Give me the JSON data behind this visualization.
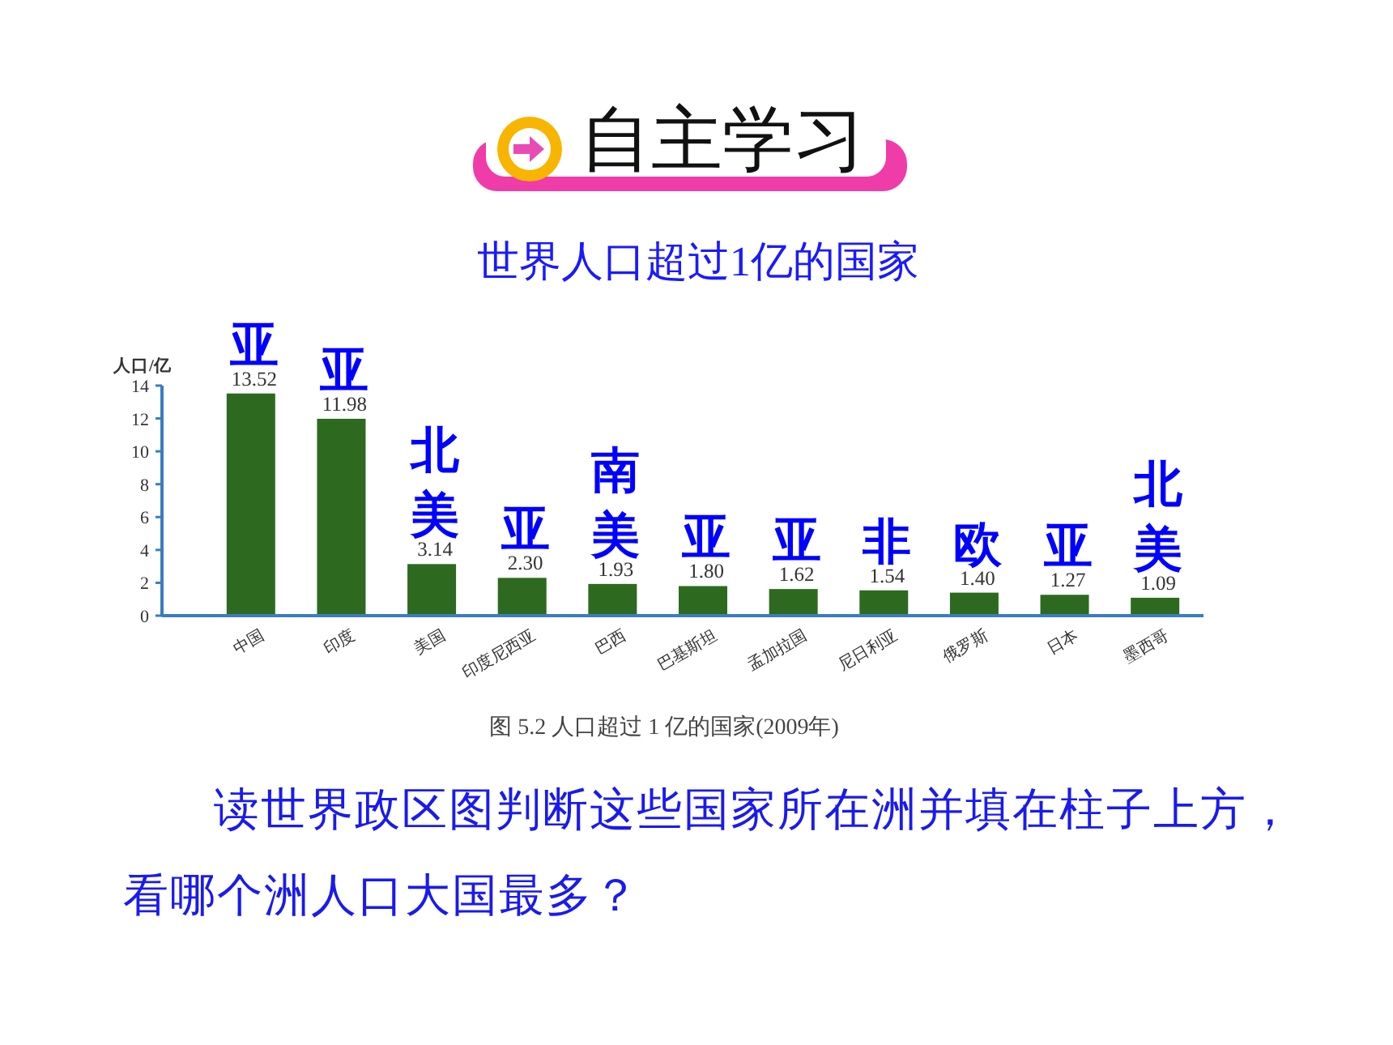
{
  "chart_data": {
    "type": "bar",
    "title": "世界人口超过1亿的国家",
    "ylabel": "人口/亿",
    "categories": [
      "中国",
      "印度",
      "美国",
      "印度尼西亚",
      "巴西",
      "巴基斯坦",
      "孟加拉国",
      "尼日利亚",
      "俄罗斯",
      "日本",
      "墨西哥"
    ],
    "values": [
      13.52,
      11.98,
      3.14,
      2.3,
      1.93,
      1.8,
      1.62,
      1.54,
      1.4,
      1.27,
      1.09
    ],
    "value_labels": [
      "13.52",
      "11.98",
      "3.14",
      "2.30",
      "1.93",
      "1.80",
      "1.62",
      "1.54",
      "1.40",
      "1.27",
      "1.09"
    ],
    "color": "#2d6a1f",
    "ylim": [
      0,
      14
    ],
    "yticks": [
      0,
      2,
      4,
      6,
      8,
      10,
      12,
      14
    ],
    "annotations": [
      "自主学习",
      "亚",
      "亚",
      "北美",
      "亚",
      "南美",
      "亚",
      "亚",
      "非",
      "欧",
      "亚",
      "北美",
      "图 5.2 人口超过 1 亿的国家(2009年)",
      "读世界政区图判断这些国家所在洲并填在柱子上方，看哪个洲人口大国最多？"
    ]
  }
}
